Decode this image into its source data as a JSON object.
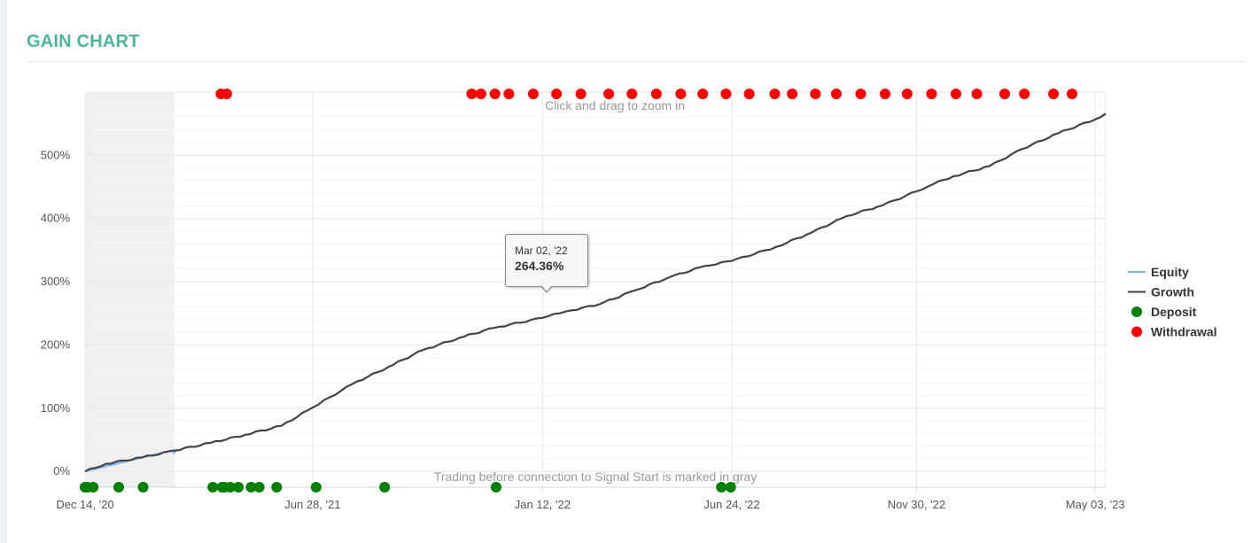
{
  "panel": {
    "title": "GAIN CHART"
  },
  "hints": {
    "zoom": "Click and drag to zoom in",
    "gray_note": "Trading before connection to Signal Start is marked in gray"
  },
  "tooltip": {
    "date": "Mar 02, '22",
    "value": "264.36%"
  },
  "colors": {
    "title": "#4bb49f",
    "equity": "#7cb5ec",
    "growth": "#434348",
    "deposit": "#008000",
    "withdrawal": "#ff0000",
    "gray_region": "#f0f0f0"
  },
  "chart_data": {
    "type": "line",
    "x_axis": {
      "type": "date",
      "min": "2020-12-14",
      "max": "2023-05-12",
      "tick_labels": [
        "Dec 14, '20",
        "Jun 28, '21",
        "Jan 12, '22",
        "Jun 24, '22",
        "Nov 30, '22",
        "May 03, '23"
      ],
      "tick_dates": [
        "2020-12-14",
        "2021-06-28",
        "2022-01-12",
        "2022-06-24",
        "2022-11-30",
        "2023-05-03"
      ]
    },
    "y_axis": {
      "unit": "%",
      "min": -25,
      "max": 600,
      "tick_values": [
        0,
        100,
        200,
        300,
        400,
        500
      ],
      "tick_labels": [
        "0%",
        "100%",
        "200%",
        "300%",
        "400%",
        "500%"
      ]
    },
    "grid": true,
    "legend_position": "right",
    "gray_region": {
      "from": "2020-12-14",
      "to": "2021-03-01"
    },
    "series": [
      {
        "name": "Equity",
        "kind": "line",
        "points": [
          [
            "2020-12-14",
            0
          ],
          [
            "2021-02-01",
            22
          ],
          [
            "2021-02-27",
            33
          ],
          [
            "2021-03-01",
            29
          ],
          [
            "2021-03-03",
            35
          ]
        ]
      },
      {
        "name": "Growth",
        "kind": "line",
        "points": [
          [
            "2020-12-14",
            0
          ],
          [
            "2021-01-01",
            12
          ],
          [
            "2021-02-01",
            22
          ],
          [
            "2021-03-01",
            33
          ],
          [
            "2021-04-01",
            45
          ],
          [
            "2021-05-01",
            58
          ],
          [
            "2021-06-01",
            72
          ],
          [
            "2021-06-28",
            101
          ],
          [
            "2021-08-01",
            138
          ],
          [
            "2021-09-01",
            165
          ],
          [
            "2021-10-01",
            192
          ],
          [
            "2021-11-01",
            211
          ],
          [
            "2021-12-01",
            227
          ],
          [
            "2022-01-12",
            243
          ],
          [
            "2022-02-01",
            253
          ],
          [
            "2022-03-02",
            264.36
          ],
          [
            "2022-04-01",
            286
          ],
          [
            "2022-05-01",
            307
          ],
          [
            "2022-06-01",
            325
          ],
          [
            "2022-06-24",
            333
          ],
          [
            "2022-08-01",
            355
          ],
          [
            "2022-09-01",
            378
          ],
          [
            "2022-10-01",
            404
          ],
          [
            "2022-11-01",
            421
          ],
          [
            "2022-11-30",
            443
          ],
          [
            "2022-12-15",
            455
          ],
          [
            "2023-01-01",
            467
          ],
          [
            "2023-02-01",
            483
          ],
          [
            "2023-03-01",
            510
          ],
          [
            "2023-04-01",
            535
          ],
          [
            "2023-05-03",
            557
          ],
          [
            "2023-05-12",
            566
          ]
        ]
      },
      {
        "name": "Deposit",
        "kind": "markers",
        "dates": [
          "2020-12-14",
          "2020-12-16",
          "2020-12-21",
          "2021-01-12",
          "2021-02-02",
          "2021-04-03",
          "2021-04-11",
          "2021-04-13",
          "2021-04-18",
          "2021-04-25",
          "2021-05-06",
          "2021-05-13",
          "2021-05-28",
          "2021-07-01",
          "2021-08-29",
          "2021-12-03",
          "2022-06-15",
          "2022-06-23"
        ]
      },
      {
        "name": "Withdrawal",
        "kind": "markers",
        "dates": [
          "2021-04-10",
          "2021-04-15",
          "2021-11-12",
          "2021-11-20",
          "2021-12-02",
          "2021-12-14",
          "2022-01-04",
          "2022-01-24",
          "2022-02-14",
          "2022-03-10",
          "2022-03-30",
          "2022-04-20",
          "2022-05-11",
          "2022-05-30",
          "2022-06-19",
          "2022-07-09",
          "2022-07-31",
          "2022-08-15",
          "2022-09-04",
          "2022-09-22",
          "2022-10-13",
          "2022-11-03",
          "2022-11-22",
          "2022-12-13",
          "2023-01-03",
          "2023-01-21",
          "2023-02-14",
          "2023-03-03",
          "2023-03-28",
          "2023-04-13"
        ]
      }
    ]
  }
}
